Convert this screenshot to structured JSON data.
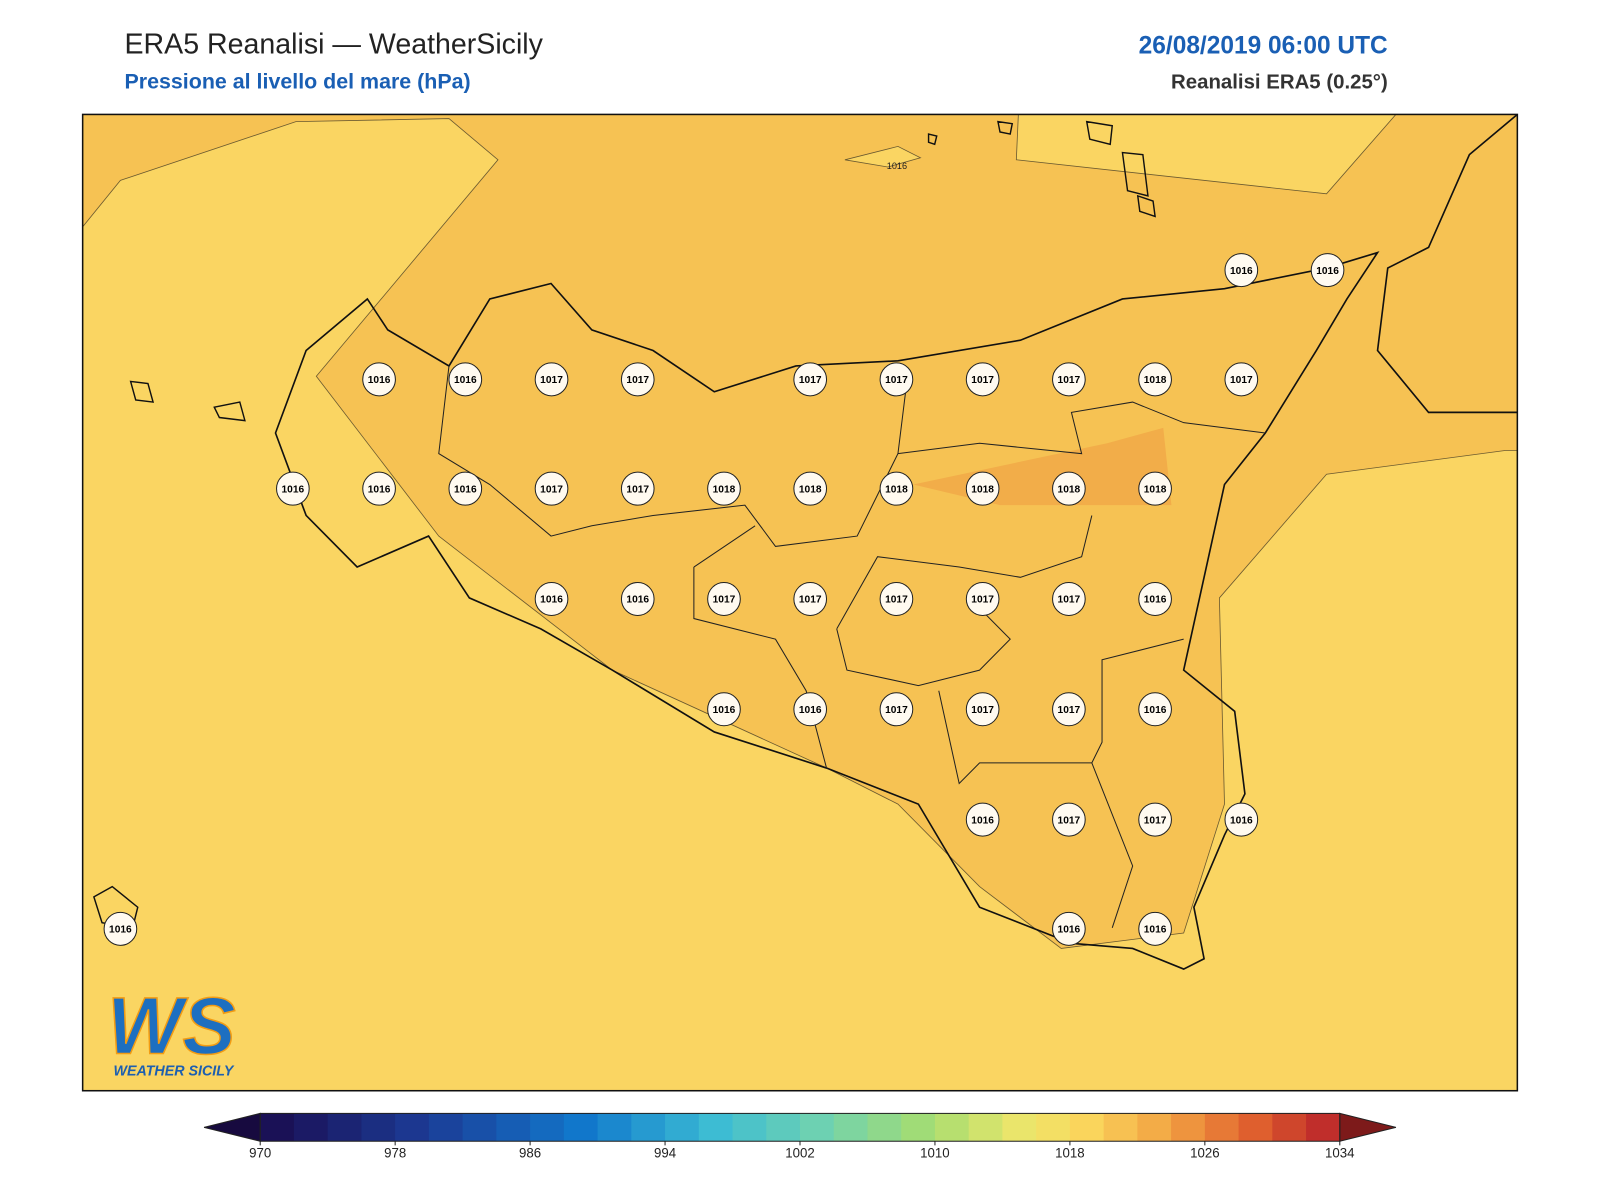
{
  "header": {
    "title": "ERA5 Reanalisi — WeatherSicily",
    "subtitle": "Pressione al livello del mare (hPa)",
    "datetime": "26/08/2019 06:00 UTC",
    "source": "Reanalisi ERA5 (0.25°)"
  },
  "map": {
    "contour_label": "1016",
    "stations": [
      1016,
      1016,
      1016,
      1016,
      1017,
      1017,
      1017,
      1017,
      1017,
      1017,
      1018,
      1017,
      1016,
      1016,
      1016,
      1017,
      1017,
      1018,
      1018,
      1018,
      1018,
      1018,
      1018,
      1016,
      1016,
      1017,
      1017,
      1017,
      1017,
      1017,
      1016,
      1016,
      1016,
      1017,
      1017,
      1017,
      1016,
      1016,
      1017,
      1017,
      1016,
      1016,
      1016,
      1016
    ]
  },
  "logo": {
    "mark": "WS",
    "name": "WEATHER SICILY"
  },
  "colorbar": {
    "range": [
      970,
      1034
    ],
    "ticks": [
      970,
      978,
      986,
      994,
      1002,
      1010,
      1018,
      1026,
      1034
    ]
  }
}
